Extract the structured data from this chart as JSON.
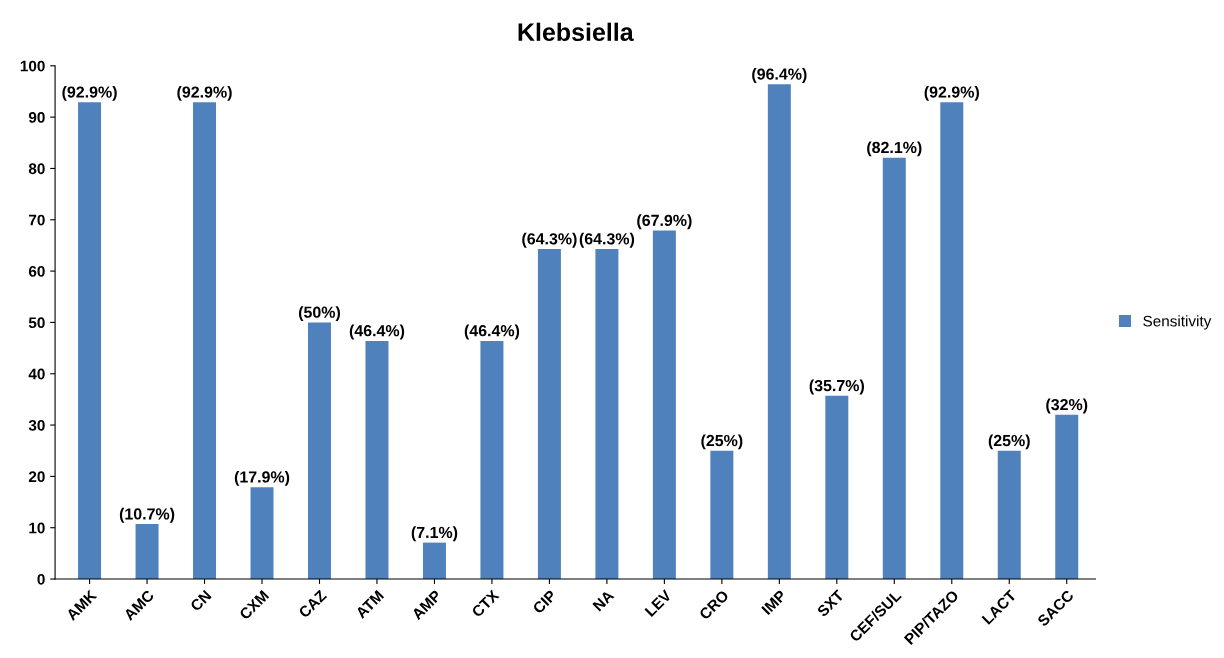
{
  "chart_data": {
    "type": "bar",
    "title": "Klebsiella",
    "categories": [
      "AMK",
      "AMC",
      "CN",
      "CXM",
      "CAZ",
      "ATM",
      "AMP",
      "CTX",
      "CIP",
      "NA",
      "LEV",
      "CRO",
      "IMP",
      "SXT",
      "CEF/SUL",
      "PIP/TAZO",
      "LACT",
      "SACC"
    ],
    "series": [
      {
        "name": "Sensitivity",
        "color": "#4f81bd",
        "values": [
          92.9,
          10.7,
          92.9,
          17.9,
          50,
          46.4,
          7.1,
          46.4,
          64.3,
          64.3,
          67.9,
          25,
          96.4,
          35.7,
          82.1,
          92.9,
          25,
          32
        ],
        "value_labels": [
          "(92.9%)",
          "(10.7%)",
          "(92.9%)",
          "(17.9%)",
          "(50%)",
          "(46.4%)",
          "(7.1%)",
          "(46.4%)",
          "(64.3%)",
          "(64.3%)",
          "(67.9%)",
          "(25%)",
          "(96.4%)",
          "(35.7%)",
          "(82.1%)",
          "(92.9%)",
          "(25%)",
          "(32%)"
        ]
      }
    ],
    "ylim": [
      0,
      100
    ],
    "yticks": [
      0,
      10,
      20,
      30,
      40,
      50,
      60,
      70,
      80,
      90,
      100
    ],
    "grid": false,
    "legend": "right"
  }
}
